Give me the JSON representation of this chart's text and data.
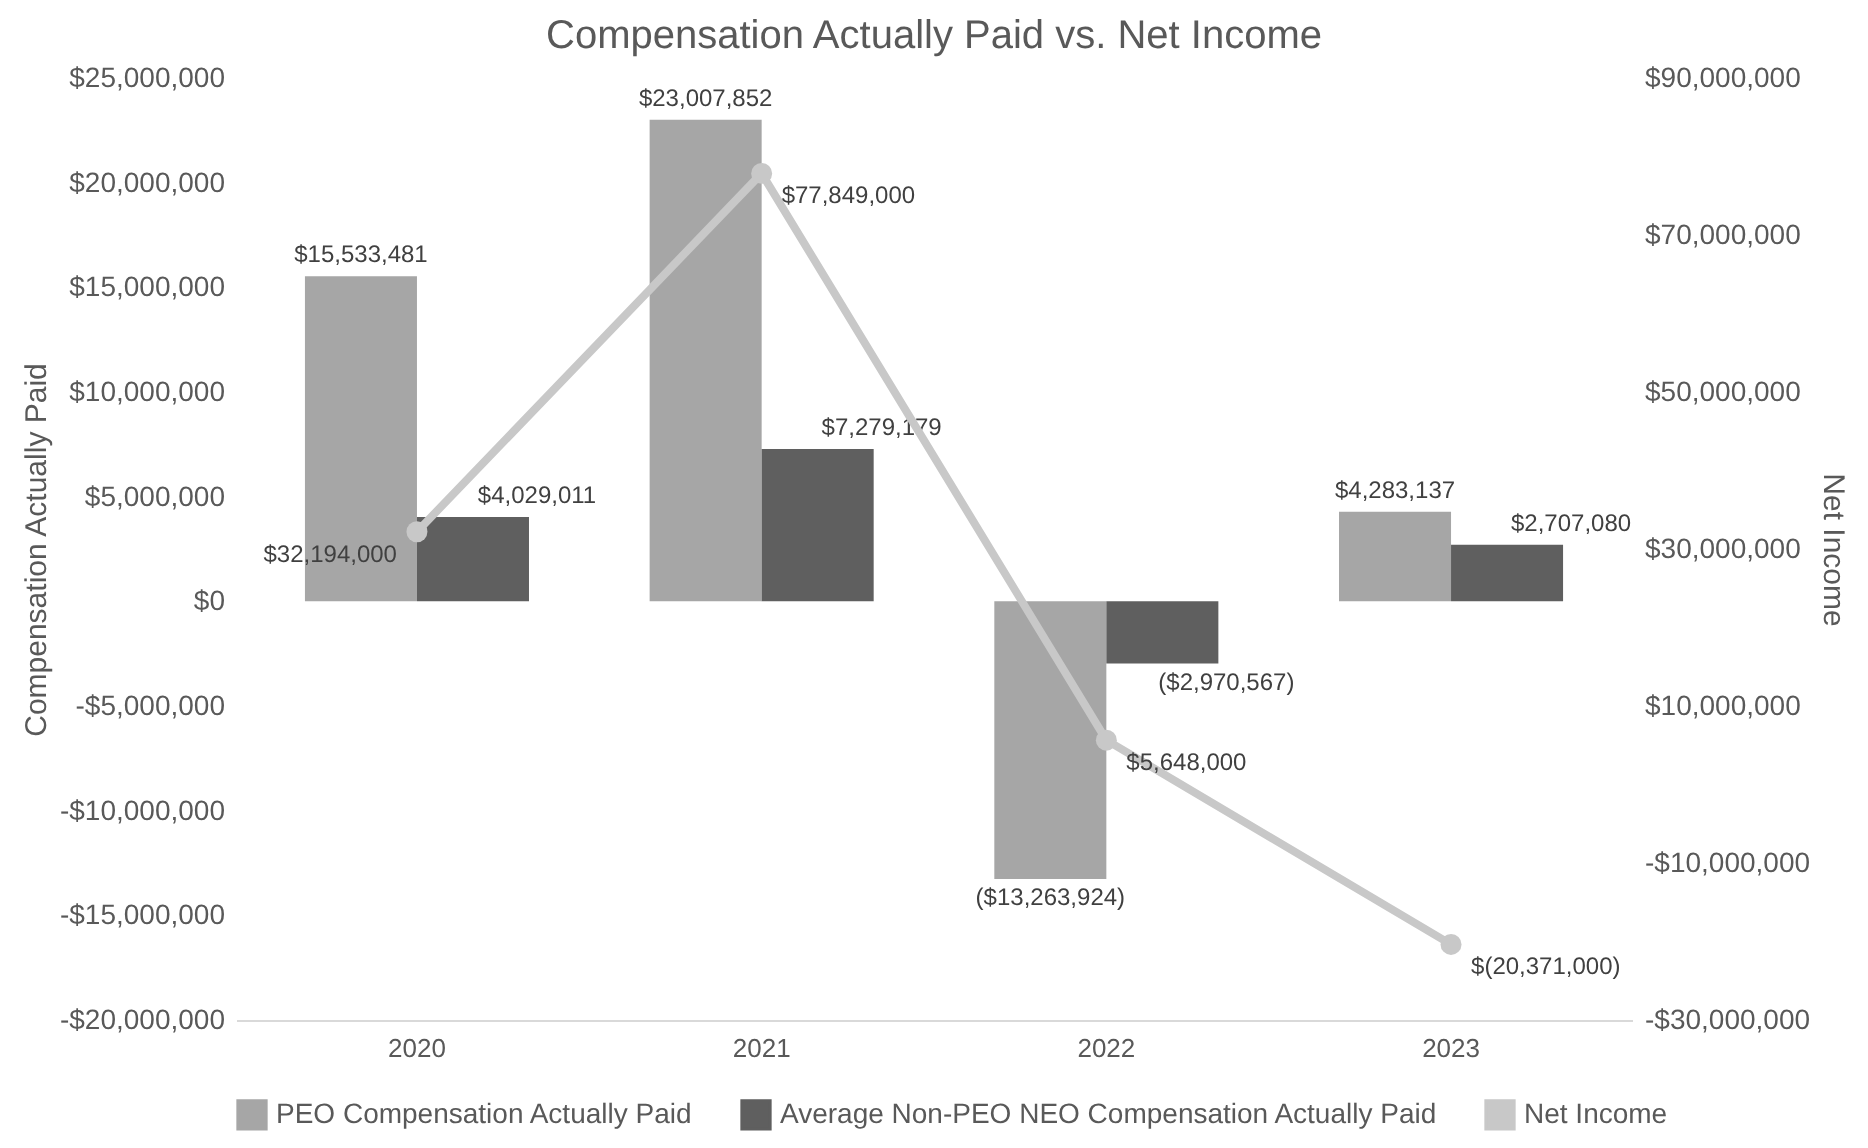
{
  "chart_data": {
    "type": "bar",
    "title": "Compensation Actually Paid  vs. Net Income",
    "categories": [
      "2020",
      "2021",
      "2022",
      "2023"
    ],
    "ylabel": "Compensation Actually Paid",
    "y2label": "Net Income",
    "series": [
      {
        "name": "PEO Compensation Actually Paid",
        "color": "#a6a6a6",
        "values": [
          15533481,
          23007852,
          -13263924,
          4283137
        ],
        "value_labels": [
          "$15,533,481",
          "$23,007,852",
          "($13,263,924)",
          "$4,283,137"
        ]
      },
      {
        "name": "Average Non-PEO NEO Compensation Actually Paid",
        "color": "#5f5f5f",
        "values": [
          4029011,
          7279179,
          -2970567,
          2707080
        ],
        "value_labels": [
          "$4,029,011",
          "$7,279,179",
          "($2,970,567)",
          "$2,707,080"
        ]
      },
      {
        "name": "Net Income",
        "type": "line",
        "axis": "y2",
        "color": "#c8c8c8",
        "marker": "circle",
        "line_style": "solid",
        "values": [
          32194000,
          77849000,
          5648000,
          -20371000
        ],
        "value_labels": [
          "$32,194,000",
          "$77,849,000",
          "$5,648,000",
          "$(20,371,000)"
        ]
      }
    ],
    "ylim": [
      -20000000,
      25000000
    ],
    "yticks": [
      {
        "value": -20000000,
        "label": "-$20,000,000"
      },
      {
        "value": -15000000,
        "label": "-$15,000,000"
      },
      {
        "value": -10000000,
        "label": "-$10,000,000"
      },
      {
        "value": -5000000,
        "label": "-$5,000,000"
      },
      {
        "value": 0,
        "label": "$0"
      },
      {
        "value": 5000000,
        "label": "$5,000,000"
      },
      {
        "value": 10000000,
        "label": "$10,000,000"
      },
      {
        "value": 15000000,
        "label": "$15,000,000"
      },
      {
        "value": 20000000,
        "label": "$20,000,000"
      },
      {
        "value": 25000000,
        "label": "$25,000,000"
      }
    ],
    "y2lim": [
      -30000000,
      90000000
    ],
    "y2ticks": [
      {
        "value": -30000000,
        "label": "-$30,000,000"
      },
      {
        "value": -10000000,
        "label": "-$10,000,000"
      },
      {
        "value": 10000000,
        "label": "$10,000,000"
      },
      {
        "value": 30000000,
        "label": "$30,000,000"
      },
      {
        "value": 50000000,
        "label": "$50,000,000"
      },
      {
        "value": 70000000,
        "label": "$70,000,000"
      },
      {
        "value": 90000000,
        "label": "$90,000,000"
      }
    ],
    "legend": "bottom",
    "grid": false
  }
}
